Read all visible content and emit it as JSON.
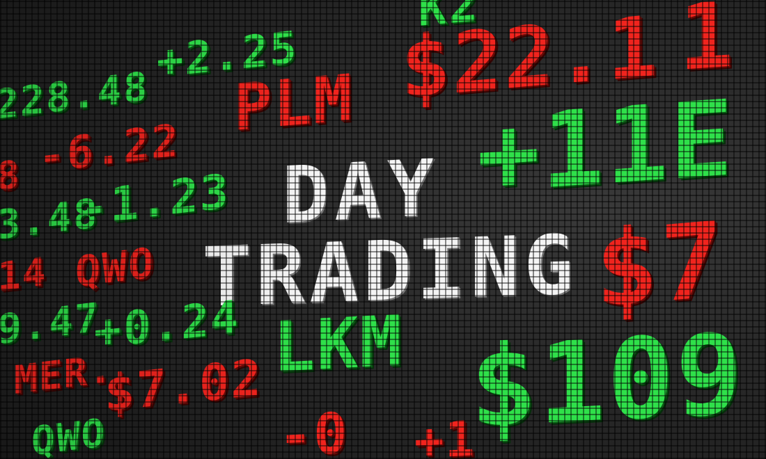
{
  "headline": {
    "line1": "DAY",
    "line2": "TRADING"
  },
  "ticker": {
    "top_row": [
      "+2.25",
      "K2",
      "1"
    ],
    "row_plm": [
      "228.48",
      "PLM",
      "$22.1"
    ],
    "row_2": [
      "8",
      "-6.22",
      "+11E"
    ],
    "row_3": [
      "3.48",
      "-1.23"
    ],
    "row_qwo": [
      "14",
      "QWO",
      "$7"
    ],
    "row_lkm": [
      "9.47",
      "+0.24",
      "LKM",
      "$109"
    ],
    "row_mer": [
      "MER.",
      "$7.02",
      "-0",
      "+1"
    ],
    "row_bottom": [
      "QWO"
    ]
  },
  "colors": {
    "green": "#2fe04a",
    "red": "#f0241e",
    "white": "#f4f4f4",
    "board_background": "#2b2b2b"
  }
}
